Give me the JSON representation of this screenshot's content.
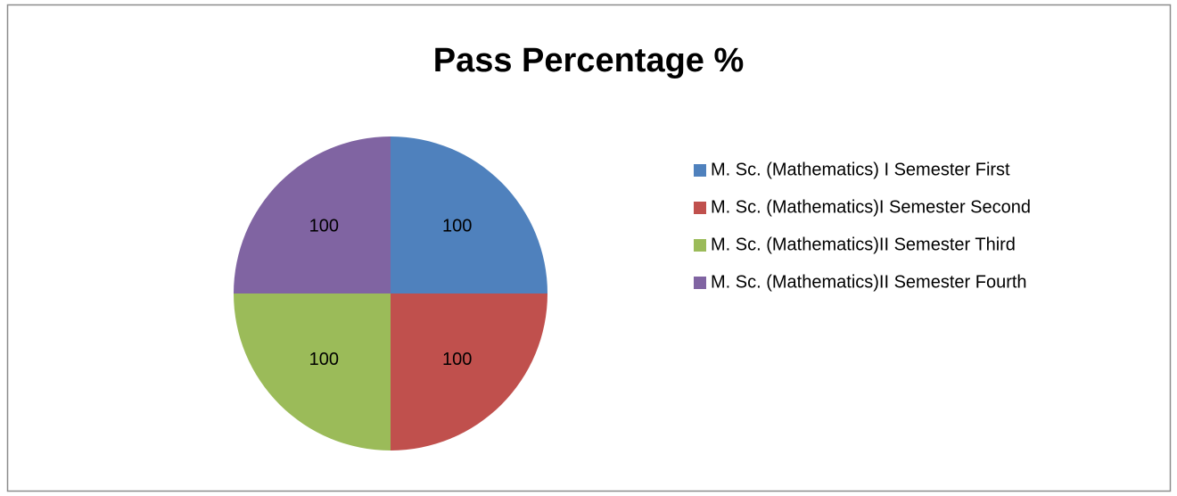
{
  "chart_data": {
    "type": "pie",
    "title": "Pass Percentage %",
    "categories": [
      "M. Sc. (Mathematics) I Semester First",
      "M. Sc. (Mathematics)I Semester Second",
      "M. Sc. (Mathematics)II Semester Third",
      "M. Sc. (Mathematics)II Semester Fourth"
    ],
    "values": [
      100,
      100,
      100,
      100
    ],
    "colors": [
      "#4f81bd",
      "#c0504d",
      "#9bbb59",
      "#8064a2"
    ],
    "legend": "right"
  }
}
